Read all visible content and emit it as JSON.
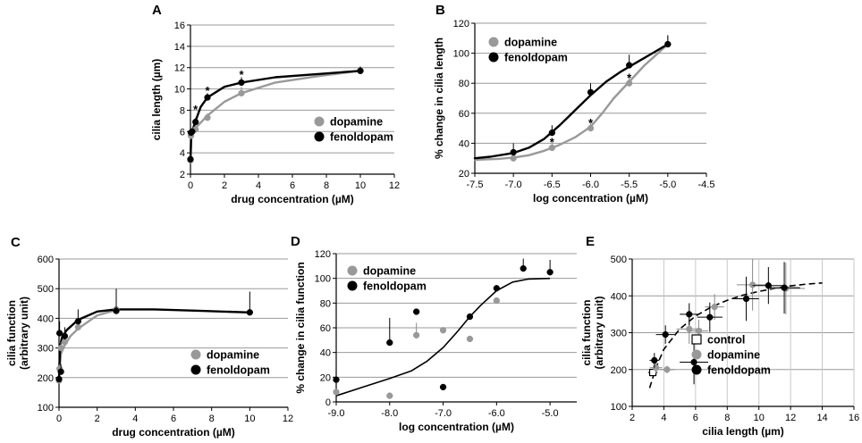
{
  "figure": {
    "colors": {
      "dopamine": "#999999",
      "fenoldopam": "#000000",
      "control": "#ffffff",
      "grid": "#9a9a9a",
      "axis": "#000000"
    }
  },
  "chart_data": [
    {
      "panel": "A",
      "type": "line",
      "xlabel": "drug concentration (µM)",
      "ylabel": "cilia length (µm)",
      "xlim": [
        0,
        12
      ],
      "ylim": [
        2,
        16
      ],
      "xticks": [
        0,
        2,
        4,
        6,
        8,
        10,
        12
      ],
      "yticks": [
        2,
        4,
        6,
        8,
        10,
        12,
        14,
        16
      ],
      "legend": [
        "dopamine",
        "fenoldopam"
      ],
      "legend_position": "center-right",
      "annotations": [
        {
          "text": "*",
          "x": 0.3,
          "y": 8.1
        },
        {
          "text": "*",
          "x": 1.0,
          "y": 9.9
        },
        {
          "text": "*",
          "x": 3.0,
          "y": 11.4
        }
      ],
      "series": [
        {
          "name": "dopamine",
          "color": "#999999",
          "points": [
            [
              0,
              3.3,
              0.2
            ],
            [
              0.03,
              5.6,
              0.3
            ],
            [
              0.1,
              6.0,
              0.3
            ],
            [
              0.3,
              6.2,
              0.4
            ],
            [
              1.0,
              7.3,
              0.4
            ],
            [
              3.0,
              9.6,
              0.6
            ],
            [
              10.0,
              11.7,
              0.3
            ]
          ],
          "curve": [
            [
              0,
              3.2
            ],
            [
              0.05,
              5.4
            ],
            [
              0.15,
              6.0
            ],
            [
              0.4,
              6.5
            ],
            [
              1,
              7.5
            ],
            [
              2,
              8.8
            ],
            [
              3,
              9.6
            ],
            [
              5,
              10.6
            ],
            [
              7.5,
              11.2
            ],
            [
              10,
              11.7
            ]
          ]
        },
        {
          "name": "fenoldopam",
          "color": "#000000",
          "points": [
            [
              0,
              3.4,
              0.2
            ],
            [
              0.03,
              5.9,
              0.3
            ],
            [
              0.1,
              6.0,
              0.3
            ],
            [
              0.3,
              6.9,
              0.4
            ],
            [
              1.0,
              9.2,
              0.4
            ],
            [
              3.0,
              10.6,
              0.5
            ],
            [
              10.0,
              11.7,
              0.4
            ]
          ],
          "curve": [
            [
              0,
              3.2
            ],
            [
              0.04,
              5.6
            ],
            [
              0.1,
              6.0
            ],
            [
              0.3,
              7.0
            ],
            [
              0.6,
              8.3
            ],
            [
              1,
              9.2
            ],
            [
              2,
              10.2
            ],
            [
              3,
              10.6
            ],
            [
              5,
              11.1
            ],
            [
              7.5,
              11.4
            ],
            [
              10,
              11.7
            ]
          ]
        }
      ]
    },
    {
      "panel": "B",
      "type": "line",
      "xlabel": "log concentration (µM)",
      "ylabel": "% change in cilia length",
      "xlim": [
        -7.5,
        -4.5
      ],
      "ylim": [
        20,
        120
      ],
      "xticks": [
        -7.5,
        -7.0,
        -6.5,
        -6.0,
        -5.5,
        -5.0,
        -4.5
      ],
      "xticklabels": [
        "-7.5",
        "-7.0",
        "-6.5",
        "-6.0",
        "-5.5",
        "-5.0",
        "-4.5"
      ],
      "yticks": [
        20,
        40,
        60,
        80,
        100,
        120
      ],
      "legend": [
        "dopamine",
        "fenoldopam"
      ],
      "legend_position": "top-left",
      "annotations": [
        {
          "text": "*",
          "x": -6.5,
          "y": 41
        },
        {
          "text": "*",
          "x": -6.0,
          "y": 54
        },
        {
          "text": "*",
          "x": -5.5,
          "y": 84
        }
      ],
      "series": [
        {
          "name": "dopamine",
          "color": "#999999",
          "points": [
            [
              -7.0,
              30,
              3
            ],
            [
              -6.5,
              37,
              4
            ],
            [
              -6.0,
              50,
              4
            ],
            [
              -5.5,
              80,
              5
            ],
            [
              -5.0,
              106,
              5
            ]
          ],
          "curve": [
            [
              -7.5,
              29
            ],
            [
              -7.2,
              29.6
            ],
            [
              -7.0,
              30.5
            ],
            [
              -6.8,
              32
            ],
            [
              -6.6,
              35
            ],
            [
              -6.4,
              39
            ],
            [
              -6.2,
              44
            ],
            [
              -6.0,
              51
            ],
            [
              -5.85,
              60
            ],
            [
              -5.7,
              70
            ],
            [
              -5.5,
              81
            ],
            [
              -5.3,
              92
            ],
            [
              -5.15,
              99
            ],
            [
              -5.0,
              106
            ]
          ]
        },
        {
          "name": "fenoldopam",
          "color": "#000000",
          "points": [
            [
              -7.0,
              34,
              6
            ],
            [
              -6.5,
              47,
              5
            ],
            [
              -6.0,
              74,
              6
            ],
            [
              -5.5,
              92,
              7
            ],
            [
              -5.0,
              106,
              6
            ]
          ],
          "curve": [
            [
              -7.5,
              30
            ],
            [
              -7.3,
              31
            ],
            [
              -7.0,
              33.5
            ],
            [
              -6.8,
              37
            ],
            [
              -6.6,
              43
            ],
            [
              -6.4,
              52
            ],
            [
              -6.2,
              62
            ],
            [
              -6.0,
              72
            ],
            [
              -5.8,
              81
            ],
            [
              -5.6,
              88
            ],
            [
              -5.4,
              94
            ],
            [
              -5.2,
              100
            ],
            [
              -5.0,
              106
            ]
          ]
        }
      ]
    },
    {
      "panel": "C",
      "type": "line",
      "xlabel": "drug concentration (µM)",
      "ylabel": "cilia function\n(arbitrary unit)",
      "xlim": [
        0,
        12
      ],
      "ylim": [
        100,
        600
      ],
      "xticks": [
        0,
        2,
        4,
        6,
        8,
        10,
        12
      ],
      "yticks": [
        100,
        200,
        300,
        400,
        500,
        600
      ],
      "legend": [
        "dopamine",
        "fenoldopam"
      ],
      "legend_position": "bottom-right",
      "series": [
        {
          "name": "dopamine",
          "color": "#999999",
          "points": [
            [
              0,
              190,
              10
            ],
            [
              0.03,
              230,
              15
            ],
            [
              0.1,
              300,
              20
            ],
            [
              0.3,
              320,
              25
            ],
            [
              1.0,
              370,
              30
            ],
            [
              3.0,
              430,
              40
            ]
          ],
          "curve": [
            [
              0,
              200
            ],
            [
              0.1,
              280
            ],
            [
              0.3,
              310
            ],
            [
              0.6,
              340
            ],
            [
              1,
              365
            ],
            [
              2,
              410
            ],
            [
              3,
              428
            ]
          ]
        },
        {
          "name": "fenoldopam",
          "color": "#000000",
          "points": [
            [
              0,
              195,
              10
            ],
            [
              0.03,
              350,
              40
            ],
            [
              0.1,
              220,
              25
            ],
            [
              0.3,
              340,
              30
            ],
            [
              1.0,
              390,
              40
            ],
            [
              3.0,
              425,
              75
            ],
            [
              10.0,
              420,
              70
            ]
          ],
          "curve": [
            [
              0,
              200
            ],
            [
              0.06,
              305
            ],
            [
              0.15,
              335
            ],
            [
              0.4,
              360
            ],
            [
              1,
              395
            ],
            [
              2,
              423
            ],
            [
              3,
              430
            ],
            [
              5,
              430
            ],
            [
              7.5,
              425
            ],
            [
              10,
              420
            ]
          ]
        }
      ]
    },
    {
      "panel": "D",
      "type": "scatter",
      "xlabel": "log concentration (µM)",
      "ylabel": "% change in cilia function",
      "xlim": [
        -9.0,
        -4.5
      ],
      "ylim": [
        0,
        120
      ],
      "xticks": [
        -9.0,
        -8.0,
        -7.0,
        -6.0,
        -5.0
      ],
      "xticklabels": [
        "-9.0",
        "-8.0",
        "-7.0",
        "-6.0",
        "-5.0"
      ],
      "yticks": [
        0,
        20,
        40,
        60,
        80,
        100,
        120
      ],
      "legend": [
        "dopamine",
        "fenoldopam"
      ],
      "legend_position": "top-left",
      "fit_curve": [
        [
          -9.0,
          5
        ],
        [
          -8.5,
          12
        ],
        [
          -8.0,
          19
        ],
        [
          -7.6,
          25
        ],
        [
          -7.3,
          33
        ],
        [
          -7.0,
          44
        ],
        [
          -6.75,
          56
        ],
        [
          -6.5,
          69
        ],
        [
          -6.3,
          78
        ],
        [
          -6.0,
          90
        ],
        [
          -5.7,
          97
        ],
        [
          -5.4,
          99.5
        ],
        [
          -5.0,
          100
        ]
      ],
      "series": [
        {
          "name": "dopamine",
          "color": "#999999",
          "points": [
            [
              -9.0,
              8,
              0
            ],
            [
              -8.0,
              5,
              0
            ],
            [
              -7.5,
              54,
              10
            ],
            [
              -7.0,
              58,
              0
            ],
            [
              -6.5,
              51,
              0
            ],
            [
              -6.0,
              82,
              0
            ]
          ]
        },
        {
          "name": "fenoldopam",
          "color": "#000000",
          "points": [
            [
              -9.0,
              18,
              0
            ],
            [
              -8.0,
              48,
              20
            ],
            [
              -7.5,
              73,
              0
            ],
            [
              -7.0,
              12,
              0
            ],
            [
              -6.5,
              69,
              0
            ],
            [
              -6.0,
              92,
              0
            ],
            [
              -5.5,
              108,
              8
            ],
            [
              -5.0,
              105,
              10
            ]
          ]
        }
      ]
    },
    {
      "panel": "E",
      "type": "scatter",
      "xlabel": "cilia length (µm)",
      "ylabel": "cilia function\n(arbitrary unit)",
      "xlim": [
        2,
        16
      ],
      "ylim": [
        100,
        500
      ],
      "xticks": [
        2,
        4,
        6,
        8,
        10,
        12,
        14,
        16
      ],
      "yticks": [
        100,
        200,
        300,
        400,
        500
      ],
      "legend": [
        "control",
        "dopamine",
        "fenoldopam"
      ],
      "legend_position": "bottom-right",
      "fit_curve": [
        [
          3.1,
          150
        ],
        [
          3.5,
          205
        ],
        [
          4,
          255
        ],
        [
          5,
          310
        ],
        [
          6,
          345
        ],
        [
          7,
          370
        ],
        [
          8,
          388
        ],
        [
          9,
          402
        ],
        [
          10,
          412
        ],
        [
          11,
          420
        ],
        [
          12,
          427
        ],
        [
          13,
          432
        ],
        [
          14,
          435
        ]
      ],
      "series": [
        {
          "name": "control",
          "color": "#ffffff",
          "points": [
            [
              3.3,
              192,
              0.3,
              10
            ]
          ]
        },
        {
          "name": "dopamine",
          "color": "#999999",
          "points": [
            [
              3.5,
              205,
              0.4,
              15
            ],
            [
              4.2,
              200,
              0.5,
              10
            ],
            [
              5.6,
              310,
              0.8,
              40
            ],
            [
              6.2,
              305,
              0.6,
              30
            ],
            [
              7.2,
              370,
              0.6,
              35
            ],
            [
              9.6,
              430,
              1.0,
              70
            ],
            [
              11.7,
              420,
              1.2,
              70
            ]
          ]
        },
        {
          "name": "fenoldopam",
          "color": "#000000",
          "points": [
            [
              3.4,
              225,
              0.3,
              20
            ],
            [
              4.1,
              295,
              0.6,
              25
            ],
            [
              5.6,
              350,
              0.6,
              30
            ],
            [
              5.9,
              220,
              0.9,
              60
            ],
            [
              6.9,
              342,
              0.8,
              40
            ],
            [
              9.2,
              392,
              0.8,
              60
            ],
            [
              10.6,
              428,
              1.0,
              50
            ],
            [
              11.6,
              422,
              1.0,
              70
            ]
          ]
        }
      ]
    }
  ]
}
